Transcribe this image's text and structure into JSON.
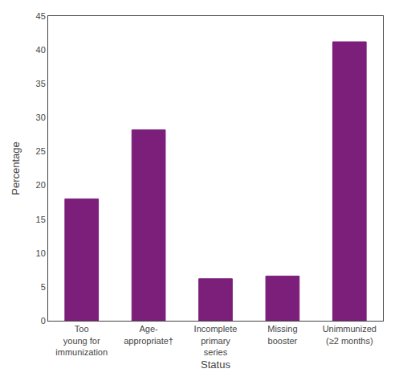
{
  "chart_data": {
    "type": "bar",
    "categories": [
      "Too\nyoung for\nimmunization",
      "Age-\nappropriate†",
      "Incomplete\nprimary\nseries",
      "Missing\nbooster",
      "Unimmunized\n(≥2 months)"
    ],
    "values": [
      18.0,
      28.2,
      6.2,
      6.6,
      41.2
    ],
    "color": "#7b1f7a",
    "xlabel": "Status",
    "ylabel": "Percentage",
    "ylim": [
      0,
      45
    ],
    "yticks": [
      0,
      5,
      10,
      15,
      20,
      25,
      30,
      35,
      40,
      45
    ],
    "grid": false
  }
}
